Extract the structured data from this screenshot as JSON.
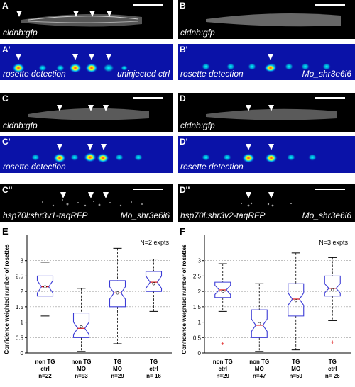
{
  "panels": {
    "A": {
      "label": "A",
      "caption": "cldnb:gfp"
    },
    "A2": {
      "label": "A'",
      "caption": "rosette detection",
      "caption_right": "uninjected ctrl"
    },
    "B": {
      "label": "B",
      "caption": "cldnb:gfp"
    },
    "B2": {
      "label": "B'",
      "caption": "rosette detection",
      "caption_right": "Mo_shr3e6i6"
    },
    "C": {
      "label": "C",
      "caption": "cldnb:gfp"
    },
    "C2": {
      "label": "C'",
      "caption": "rosette detection"
    },
    "C3": {
      "label": "C''",
      "caption": "hsp70l:shr3v1-taqRFP",
      "caption_right": "Mo_shr3e6i6"
    },
    "D": {
      "label": "D",
      "caption": "cldnb:gfp"
    },
    "D2": {
      "label": "D'",
      "caption": "rosette detection"
    },
    "D3": {
      "label": "D''",
      "caption": "hsp70l:shr3v2-taqRFP",
      "caption_right": "Mo_shr3e6i6"
    }
  },
  "colors": {
    "box": "#3b3bd6",
    "median": "#d11",
    "whisker": "#000",
    "grid": "#999",
    "outlier": "#d11"
  },
  "chart_data": [
    {
      "panel_label": "E",
      "type": "box",
      "annotation": "N=2 expts",
      "ylabel": "Confidence weighted number of rosettes",
      "ylim": [
        0,
        3.5
      ],
      "yticks": [
        0,
        0.5,
        1,
        1.5,
        2,
        2.5,
        3
      ],
      "grid": true,
      "categories": [
        {
          "line1": "non TG",
          "line2": "ctrl",
          "n": "n=22"
        },
        {
          "line1": "non TG",
          "line2": "MO",
          "n": "n=93"
        },
        {
          "line1": "TG",
          "line2": "MO",
          "n": "n=29"
        },
        {
          "line1": "TG",
          "line2": "ctrl",
          "n": "n= 16"
        }
      ],
      "boxes": [
        {
          "min": 1.2,
          "q1": 1.85,
          "median": 2.15,
          "q3": 2.5,
          "max": 2.95,
          "mean": 2.15,
          "notch": 0.2,
          "outliers": []
        },
        {
          "min": 0.05,
          "q1": 0.5,
          "median": 0.8,
          "q3": 1.3,
          "max": 2.1,
          "mean": 0.85,
          "notch": 0.2,
          "outliers": []
        },
        {
          "min": 0.3,
          "q1": 1.5,
          "median": 1.95,
          "q3": 2.35,
          "max": 3.4,
          "mean": 1.95,
          "notch": 0.2,
          "outliers": []
        },
        {
          "min": 1.35,
          "q1": 2.0,
          "median": 2.3,
          "q3": 2.65,
          "max": 3.05,
          "mean": 2.25,
          "notch": 0.2,
          "outliers": []
        }
      ]
    },
    {
      "panel_label": "F",
      "type": "box",
      "annotation": "N=3 expts",
      "ylabel": "Confidence weighted number of rosettes",
      "ylim": [
        0,
        3.5
      ],
      "yticks": [
        0,
        0.5,
        1,
        1.5,
        2,
        2.5,
        3
      ],
      "grid": true,
      "categories": [
        {
          "line1": "non TG",
          "line2": "ctrl",
          "n": "n=29"
        },
        {
          "line1": "non TG",
          "line2": "MO",
          "n": "n=47"
        },
        {
          "line1": "TG",
          "line2": "MO",
          "n": "n=59"
        },
        {
          "line1": "TG",
          "line2": "ctrl",
          "n": "n= 26"
        }
      ],
      "boxes": [
        {
          "min": 1.35,
          "q1": 1.8,
          "median": 2.05,
          "q3": 2.3,
          "max": 2.9,
          "mean": 2.0,
          "notch": 0.15,
          "outliers": [
            0.3
          ]
        },
        {
          "min": 0.05,
          "q1": 0.5,
          "median": 0.9,
          "q3": 1.4,
          "max": 2.25,
          "mean": 0.95,
          "notch": 0.2,
          "outliers": []
        },
        {
          "min": 0.1,
          "q1": 1.2,
          "median": 1.75,
          "q3": 2.25,
          "max": 3.25,
          "mean": 1.7,
          "notch": 0.2,
          "outliers": []
        },
        {
          "min": 1.05,
          "q1": 1.85,
          "median": 2.1,
          "q3": 2.5,
          "max": 3.1,
          "mean": 2.05,
          "notch": 0.15,
          "outliers": [
            0.35
          ]
        }
      ]
    }
  ]
}
